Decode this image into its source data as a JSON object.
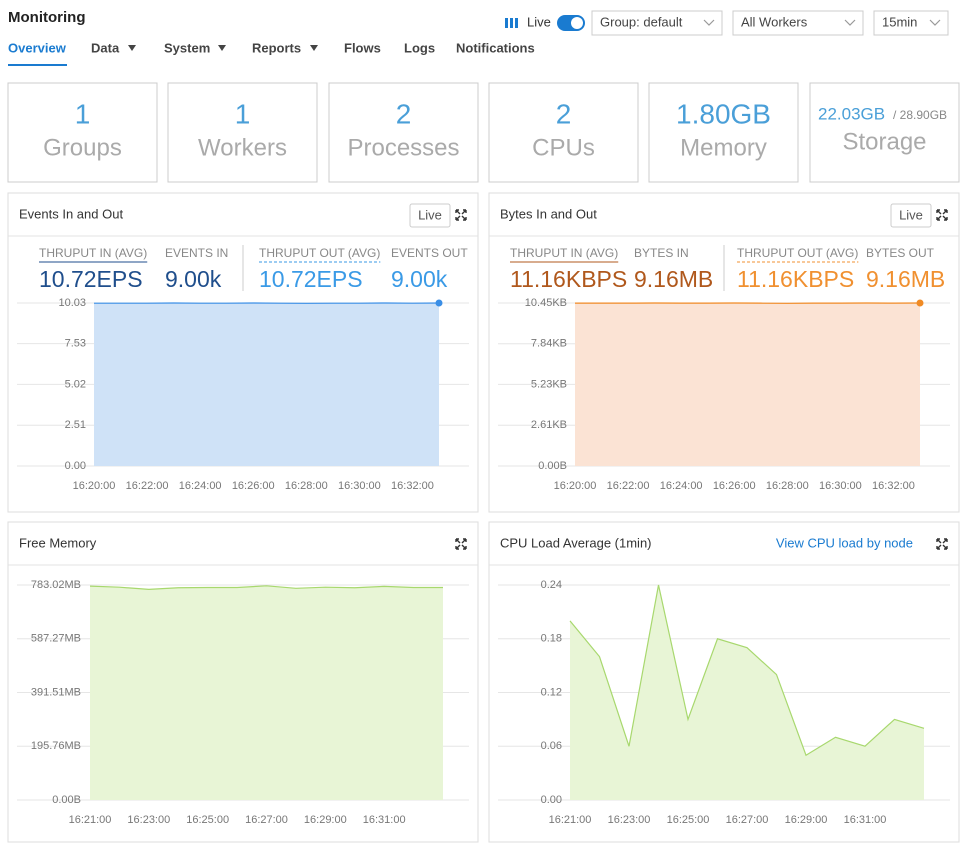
{
  "header": {
    "title": "Monitoring",
    "live_label": "Live",
    "group_select": "Group: default",
    "workers_select": "All Workers",
    "range_select": "15min"
  },
  "tabs": [
    "Overview",
    "Data",
    "System",
    "Reports",
    "Flows",
    "Logs",
    "Notifications"
  ],
  "stats": [
    {
      "value": "1",
      "label": "Groups"
    },
    {
      "value": "1",
      "label": "Workers"
    },
    {
      "value": "2",
      "label": "Processes"
    },
    {
      "value": "2",
      "label": "CPUs"
    },
    {
      "value": "1.80GB",
      "label": "Memory"
    }
  ],
  "storage": {
    "used": "22.03GB",
    "total": "/ 28.90GB",
    "label": "Storage"
  },
  "panels": [
    {
      "title": "Events In and Out",
      "button": "Live",
      "metrics": [
        {
          "label": "THRUPUT IN (AVG)",
          "value": "10.72EPS",
          "color": "#1f4e8c"
        },
        {
          "label": "EVENTS IN",
          "value": "9.00k",
          "color": "#1f4e8c"
        },
        {
          "label": "THRUPUT OUT (AVG)",
          "value": "10.72EPS",
          "color": "#3a9ae6"
        },
        {
          "label": "EVENTS OUT",
          "value": "9.00k",
          "color": "#3a9ae6"
        }
      ],
      "chart_data": {
        "type": "area",
        "categories": [
          "16:20:00",
          null,
          "16:22:00",
          null,
          "16:24:00",
          null,
          "16:26:00",
          null,
          "16:28:00",
          null,
          "16:30:00",
          null,
          "16:32:00",
          null
        ],
        "series": [
          {
            "color": "#3a8ee6",
            "fill": "#cfe2f7",
            "values": [
              10.02,
              10.02,
              10.02,
              10.03,
              10.02,
              10.02,
              10.03,
              10.02,
              10.01,
              10.02,
              10.02,
              10.03,
              10.02,
              10.03
            ]
          }
        ],
        "ylim": [
          0,
          10.03
        ],
        "yticks": [
          {
            "value": 0,
            "label": "0.00"
          },
          2.51,
          5.02,
          7.53,
          10.03
        ]
      }
    },
    {
      "title": "Bytes In and Out",
      "button": "Live",
      "metrics": [
        {
          "label": "THRUPUT IN (AVG)",
          "value": "11.16KBPS",
          "color": "#b0581c"
        },
        {
          "label": "BYTES IN",
          "value": "9.16MB",
          "color": "#b0581c"
        },
        {
          "label": "THRUPUT OUT (AVG)",
          "value": "11.16KBPS",
          "color": "#f09030"
        },
        {
          "label": "BYTES OUT",
          "value": "9.16MB",
          "color": "#f09030"
        }
      ],
      "chart_data": {
        "type": "area",
        "categories": [
          "16:20:00",
          null,
          "16:22:00",
          null,
          "16:24:00",
          null,
          "16:26:00",
          null,
          "16:28:00",
          null,
          "16:30:00",
          null,
          "16:32:00",
          null
        ],
        "series": [
          {
            "color": "#f08a24",
            "fill": "#fbe3d4",
            "values": [
              10.44,
              10.44,
              10.44,
              10.45,
              10.44,
              10.44,
              10.45,
              10.44,
              10.43,
              10.44,
              10.44,
              10.45,
              10.44,
              10.45
            ]
          }
        ],
        "ylim": [
          0,
          10.45
        ],
        "yticks": [
          {
            "value": 0,
            "label": "0.00B"
          },
          {
            "value": 2.61,
            "label": "2.61KB"
          },
          {
            "value": 5.23,
            "label": "5.23KB"
          },
          {
            "value": 7.84,
            "label": "7.84KB"
          },
          {
            "value": 10.45,
            "label": "10.45KB"
          }
        ]
      }
    },
    {
      "title": "Free Memory",
      "chart_data": {
        "type": "area",
        "categories": [
          "16:21:00",
          null,
          "16:23:00",
          null,
          "16:25:00",
          null,
          "16:27:00",
          null,
          "16:29:00",
          null,
          "16:31:00",
          null,
          null
        ],
        "series": [
          {
            "color": "#a8d86e",
            "fill": "#e8f5d6",
            "values": [
              779,
              775,
              767,
              773,
              774,
              774,
              780,
              771,
              775,
              773,
              778,
              774,
              774
            ]
          }
        ],
        "ylim": [
          0,
          783.02
        ],
        "yticks": [
          {
            "value": 0,
            "label": "0.00B"
          },
          {
            "value": 195.76,
            "label": "195.76MB"
          },
          {
            "value": 391.51,
            "label": "391.51MB"
          },
          {
            "value": 587.27,
            "label": "587.27MB"
          },
          {
            "value": 783.02,
            "label": "783.02MB"
          }
        ]
      }
    },
    {
      "title": "CPU Load Average (1min)",
      "link": "View CPU load by node",
      "chart_data": {
        "type": "area",
        "categories": [
          "16:21:00",
          null,
          "16:23:00",
          null,
          "16:25:00",
          null,
          "16:27:00",
          null,
          "16:29:00",
          null,
          "16:31:00",
          null,
          null
        ],
        "series": [
          {
            "color": "#a8d86e",
            "fill": "#e8f5d6",
            "values": [
              0.2,
              0.16,
              0.06,
              0.24,
              0.09,
              0.18,
              0.17,
              0.14,
              0.05,
              0.07,
              0.06,
              0.09,
              0.08
            ]
          }
        ],
        "ylim": [
          0,
          0.24
        ],
        "yticks": [
          {
            "value": 0,
            "label": "0.00"
          },
          0.06,
          0.12,
          0.18,
          0.24
        ]
      }
    }
  ]
}
